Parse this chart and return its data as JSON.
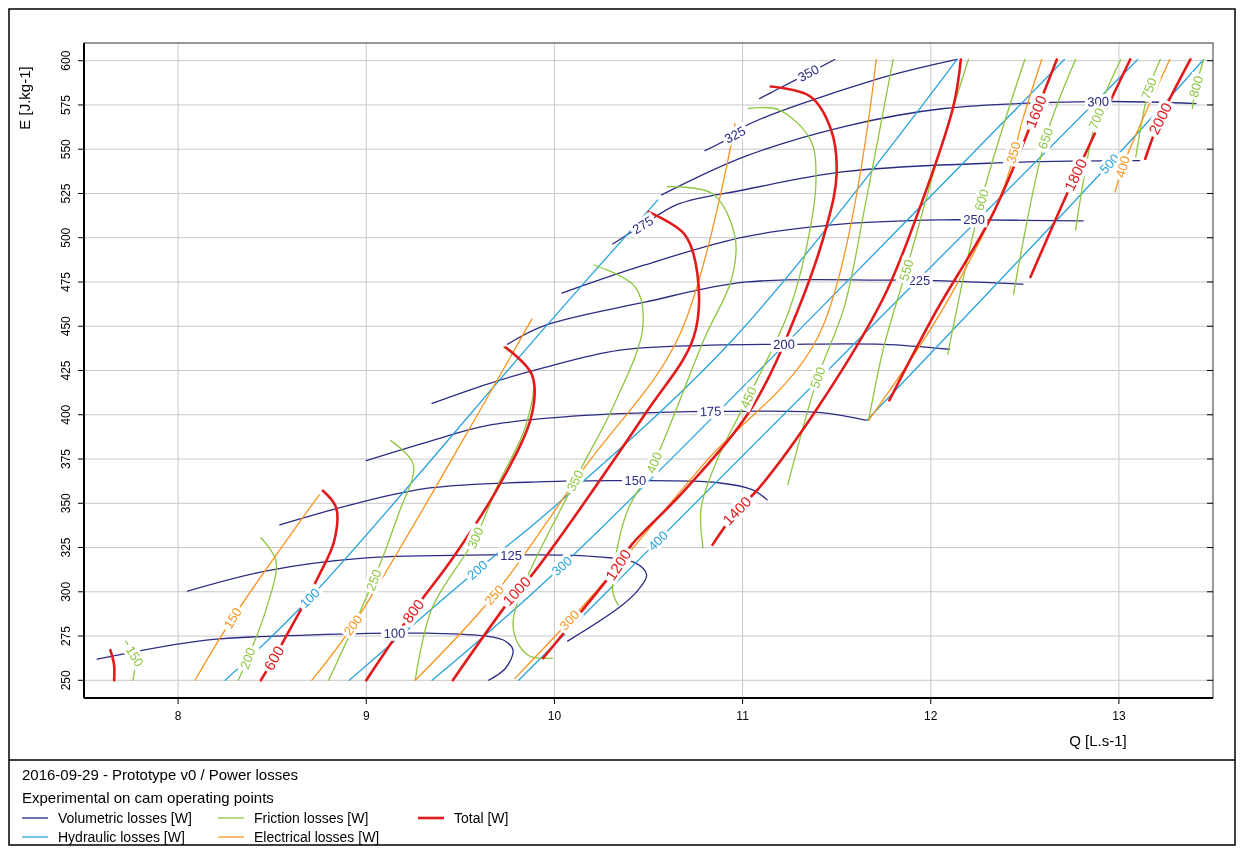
{
  "chart_data": {
    "type": "line",
    "title": "2016-09-29 - Prototype v0 / Power losses",
    "subtitle": "Experimental on cam operating points",
    "xlabel": "Q [L.s-1]",
    "ylabel": "E [J.kg-1]",
    "xlim": [
      7.5,
      13.5
    ],
    "ylim": [
      240,
      610
    ],
    "xticks": [
      8,
      9,
      10,
      11,
      12,
      13
    ],
    "yticks": [
      250,
      275,
      300,
      325,
      350,
      375,
      400,
      425,
      450,
      475,
      500,
      525,
      550,
      575,
      600
    ],
    "grid": true,
    "legend": "bottom",
    "marker": "none",
    "line_style": "solid",
    "series": [
      {
        "name": "Volumetric losses [W]",
        "color": "#2b2b83",
        "x": [
          7.57,
          8.15,
          8.68,
          9.15,
          9.32,
          9.64,
          9.74,
          9.78,
          9.74,
          9.65,
          null,
          8.05,
          8.47,
          9.0,
          9.64,
          9.77,
          10.16,
          10.43,
          10.49,
          10.44,
          10.34,
          10.07,
          null,
          8.54,
          9.0,
          9.35,
          9.95,
          10.34,
          10.43,
          10.87,
          11.05,
          11.13,
          null,
          9.0,
          9.35,
          9.64,
          10.16,
          10.83,
          10.87,
          11.4,
          11.66,
          null,
          9.35,
          9.64,
          9.95,
          10.34,
          10.8,
          11.22,
          11.75,
          12.1,
          null,
          9.75,
          9.95,
          10.48,
          11.01,
          11.75,
          11.94,
          12.49,
          null,
          10.04,
          10.48,
          11.01,
          11.54,
          12.07,
          12.23,
          12.81,
          null,
          10.31,
          10.47,
          10.66,
          11.01,
          11.54,
          12.39,
          13.11,
          null,
          10.57,
          11.01,
          11.54,
          12.07,
          12.89,
          13.41,
          null,
          10.8,
          10.96,
          11.01,
          11.71,
          12.14,
          null,
          11.09,
          11.17,
          11.49
        ],
        "values": [
          261.9,
          272.7,
          275.5,
          276.6,
          276.6,
          274.9,
          272.1,
          267.0,
          256.8,
          250.0,
          null,
          300.4,
          311.8,
          319.1,
          320.8,
          320.8,
          320.3,
          316.3,
          309.5,
          300.4,
          290.8,
          272.1,
          null,
          337.8,
          351.4,
          358.8,
          362.2,
          362.8,
          362.8,
          361.6,
          357.7,
          352.0,
          null,
          374.1,
          385.4,
          393.9,
          399.6,
          401.9,
          401.9,
          401.3,
          396.8,
          null,
          406.4,
          417.2,
          426.8,
          436.4,
          439.2,
          439.8,
          439.8,
          437.0,
          null,
          439.8,
          450.5,
          463.6,
          474.9,
          476.0,
          476.0,
          473.8,
          null,
          468.7,
          484.6,
          500.5,
          507.8,
          510.1,
          510.1,
          509.5,
          null,
          496.5,
          507.2,
          519.1,
          527.1,
          537.3,
          542.4,
          543.5,
          null,
          524.2,
          545.8,
          562.8,
          573.0,
          576.9,
          575.8,
          null,
          549.2,
          558.2,
          562.8,
          589.4,
          600.7,
          null,
          578.6,
          583.0,
          600.7
        ]
      },
      {
        "name": "Hydraulic losses [W]",
        "color": "#29a3dc",
        "x": [
          8.25,
          8.7,
          9.95,
          10.55,
          null,
          8.91,
          9.59,
          9.95,
          10.96,
          12.14,
          null,
          9.35,
          10.04,
          12.71,
          null,
          9.81,
          10.39,
          13.1,
          null,
          11.66,
          12.95,
          13.45
        ],
        "values": [
          250.0,
          296.5,
          449.4,
          521.4,
          null,
          250.0,
          312.3,
          343.5,
          443.8,
          600.7,
          null,
          250.0,
          314.6,
          600.7,
          null,
          250.0,
          311.8,
          600.7,
          null,
          396.8,
          541.8,
          600.7
        ]
      },
      {
        "name": "Friction losses [W]",
        "color": "#8dc63f",
        "x": [
          7.72,
          7.77,
          7.76,
          null,
          8.44,
          8.52,
          8.47,
          8.37,
          8.32,
          null,
          9.13,
          9.25,
          9.17,
          9.04,
          8.8,
          null,
          9.73,
          9.88,
          9.85,
          9.7,
          9.58,
          9.35,
          9.26,
          null,
          10.21,
          10.43,
          10.47,
          10.31,
          10.11,
          9.78,
          9.86,
          9.99,
          null,
          10.6,
          10.84,
          10.96,
          10.94,
          10.8,
          10.53,
          10.38,
          10.31,
          10.34,
          null,
          11.03,
          11.19,
          11.36,
          11.39,
          11.34,
          11.24,
          11.03,
          10.87,
          10.78,
          10.79,
          null,
          11.8,
          11.65,
          11.54,
          11.4,
          11.24,
          null,
          12.2,
          12.04,
          11.87,
          11.75,
          11.67,
          null,
          12.5,
          12.27,
          12.09,
          null,
          12.77,
          12.61,
          12.44,
          null,
          13.01,
          12.88,
          12.77,
          null,
          13.22,
          13.16,
          13.09,
          null,
          13.45,
          13.41,
          13.39
        ],
        "values": [
          272.1,
          263.6,
          250.0,
          null,
          330.5,
          317.4,
          290.8,
          262.5,
          250.0,
          null,
          385.4,
          371.8,
          343.5,
          306.7,
          250.0,
          null,
          438.1,
          422.8,
          394.5,
          360.5,
          330.5,
          290.8,
          250.0,
          null,
          484.6,
          472.1,
          449.4,
          404.1,
          362.8,
          281.2,
          264.2,
          262.5,
          null,
          528.8,
          524.8,
          500.5,
          476.1,
          443.8,
          373.0,
          343.5,
          300.4,
          292.5,
          null,
          573.0,
          572.4,
          555.4,
          532.7,
          494.8,
          456.8,
          409.8,
          375.8,
          347.5,
          324.8,
          null,
          600.7,
          517.4,
          460.8,
          421.1,
          360.5,
          null,
          600.7,
          545.8,
          481.7,
          438.1,
          396.8,
          null,
          600.7,
          521.4,
          434.1,
          null,
          600.7,
          556.0,
          468.1,
          null,
          600.7,
          567.3,
          504.4,
          null,
          600.7,
          584.3,
          545.8,
          null,
          600.7,
          585.4,
          573.0
        ]
      },
      {
        "name": "Electrical losses [W]",
        "color": "#f7941d",
        "x": [
          8.09,
          8.29,
          8.75,
          null,
          8.71,
          8.93,
          9.88,
          null,
          9.26,
          9.68,
          10.16,
          10.66,
          10.96,
          null,
          9.79,
          10.2,
          10.8,
          11.4,
          11.71,
          null,
          11.67,
          12.07,
          12.39,
          12.49,
          12.59,
          null,
          12.98,
          13.02,
          13.27
        ],
        "values": [
          250.0,
          285.1,
          354.8,
          null,
          250.0,
          281.2,
          454.0,
          null,
          250.0,
          298.2,
          370.1,
          443.8,
          564.5,
          null,
          251.1,
          297.6,
          373.0,
          443.8,
          600.7,
          null,
          396.8,
          460.8,
          528.8,
          567.3,
          600.7,
          null,
          525.9,
          540.1,
          600.7
        ]
      },
      {
        "name": "Total [W]",
        "color": "#e31a1c",
        "x": [
          7.64,
          7.66,
          7.66,
          null,
          8.77,
          8.84,
          8.83,
          8.75,
          8.56,
          8.51,
          8.44,
          null,
          9.74,
          9.88,
          9.88,
          9.7,
          9.46,
          9.25,
          9.0,
          null,
          10.5,
          10.69,
          10.76,
          10.74,
          10.48,
          9.88,
          9.8,
          9.46,
          null,
          11.15,
          11.36,
          11.47,
          11.5,
          11.45,
          11.3,
          11.05,
          10.69,
          10.41,
          10.34,
          9.94,
          null,
          12.16,
          12.12,
          11.93,
          11.75,
          11.4,
          11.08,
          10.97,
          10.84,
          null,
          12.67,
          12.56,
          12.33,
          12.02,
          11.78,
          null,
          13.06,
          12.77,
          12.53,
          null,
          13.38,
          13.22,
          13.14
        ],
        "values": [
          267.0,
          258.5,
          250.0,
          null,
          357.1,
          347.5,
          328.8,
          309.5,
          272.1,
          262.5,
          250.0,
          null,
          438.1,
          422.8,
          400.1,
          358.8,
          319.1,
          289.1,
          250.0,
          null,
          514.6,
          502.1,
          479.5,
          443.8,
          400.1,
          309.5,
          300.4,
          250.0,
          null,
          585.4,
          579.8,
          561.1,
          536.1,
          507.8,
          460.8,
          404.1,
          357.1,
          326.5,
          315.2,
          262.5,
          null,
          600.7,
          574.1,
          513.5,
          466.4,
          404.1,
          357.7,
          345.8,
          326.5,
          null,
          600.7,
          571.3,
          513.5,
          456.8,
          408.1,
          null,
          600.7,
          535.6,
          477.8,
          null,
          600.7,
          567.3,
          544.6
        ]
      }
    ],
    "annotations": [
      {
        "text": "100",
        "x": 9.15,
        "y": 276.6
      },
      {
        "text": "125",
        "x": 9.77,
        "y": 320.8
      },
      {
        "text": "150",
        "x": 10.43,
        "y": 362.8
      },
      {
        "text": "175",
        "x": 10.83,
        "y": 401.9
      },
      {
        "text": "200",
        "x": 11.22,
        "y": 439.8
      },
      {
        "text": "225",
        "x": 11.94,
        "y": 476.0
      },
      {
        "text": "250",
        "x": 12.23,
        "y": 510.1
      },
      {
        "text": "275",
        "x": 10.47,
        "y": 507.2
      },
      {
        "text": "300",
        "x": 12.89,
        "y": 576.9
      },
      {
        "text": "325",
        "x": 10.96,
        "y": 558.2
      },
      {
        "text": "350",
        "x": 11.35,
        "y": 593.0
      },
      {
        "text": "100",
        "x": 8.7,
        "y": 296.5
      },
      {
        "text": "200",
        "x": 9.59,
        "y": 312.3
      },
      {
        "text": "300",
        "x": 10.04,
        "y": 314.6
      },
      {
        "text": "400",
        "x": 10.55,
        "y": 328.9
      },
      {
        "text": "500",
        "x": 12.95,
        "y": 541.8
      },
      {
        "text": "150",
        "x": 7.77,
        "y": 263.6
      },
      {
        "text": "200",
        "x": 8.37,
        "y": 262.5
      },
      {
        "text": "250",
        "x": 9.04,
        "y": 306.7
      },
      {
        "text": "300",
        "x": 9.58,
        "y": 330.5
      },
      {
        "text": "350",
        "x": 10.11,
        "y": 362.8
      },
      {
        "text": "400",
        "x": 10.53,
        "y": 373.0
      },
      {
        "text": "450",
        "x": 11.03,
        "y": 409.8
      },
      {
        "text": "500",
        "x": 11.4,
        "y": 421.1
      },
      {
        "text": "550",
        "x": 11.87,
        "y": 481.7
      },
      {
        "text": "600",
        "x": 12.27,
        "y": 521.4
      },
      {
        "text": "650",
        "x": 12.61,
        "y": 556.0
      },
      {
        "text": "700",
        "x": 12.88,
        "y": 567.3
      },
      {
        "text": "750",
        "x": 13.16,
        "y": 584.3
      },
      {
        "text": "800",
        "x": 13.41,
        "y": 585.4
      },
      {
        "text": "150",
        "x": 8.29,
        "y": 285.1
      },
      {
        "text": "200",
        "x": 8.93,
        "y": 281.2
      },
      {
        "text": "250",
        "x": 9.68,
        "y": 298.2
      },
      {
        "text": "300",
        "x": 10.08,
        "y": 284.0
      },
      {
        "text": "350",
        "x": 12.44,
        "y": 548.1
      },
      {
        "text": "400",
        "x": 13.02,
        "y": 540.1
      },
      {
        "text": "600",
        "x": 8.51,
        "y": 262.5
      },
      {
        "text": "800",
        "x": 9.25,
        "y": 289.1
      },
      {
        "text": "1000",
        "x": 9.8,
        "y": 300.4
      },
      {
        "text": "1200",
        "x": 10.34,
        "y": 315.2
      },
      {
        "text": "1400",
        "x": 10.97,
        "y": 345.8
      },
      {
        "text": "1600",
        "x": 12.56,
        "y": 571.3
      },
      {
        "text": "1800",
        "x": 12.77,
        "y": 535.6
      },
      {
        "text": "2000",
        "x": 13.22,
        "y": 567.3
      }
    ]
  }
}
